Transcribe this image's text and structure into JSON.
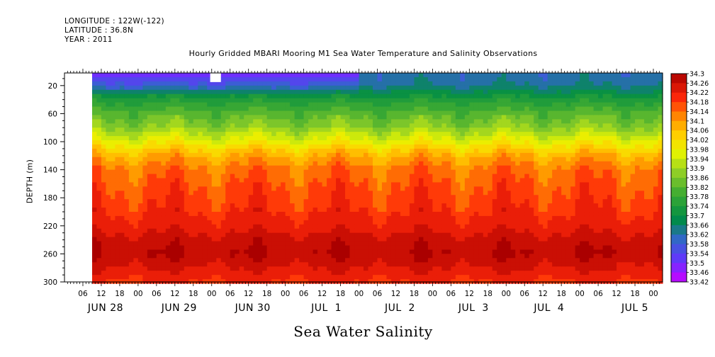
{
  "header": {
    "longitude": "LONGITUDE : 122W(-122)",
    "latitude": "LATITUDE : 36.8N",
    "year": "YEAR : 2011"
  },
  "chart_data": {
    "type": "heatmap",
    "title": "Hourly Gridded MBARI Mooring M1 Sea Water Temperature and Salinity Observations",
    "xlabel": "Sea Water Salinity",
    "ylabel": "DEPTH (m)",
    "x_range_hours": [
      0,
      195
    ],
    "ylim": [
      300,
      2
    ],
    "y_ticks": [
      20,
      60,
      100,
      140,
      180,
      220,
      260,
      300
    ],
    "x_hour_labels": [
      "06",
      "12",
      "18",
      "00",
      "06",
      "12",
      "18",
      "00",
      "06",
      "12",
      "18",
      "00",
      "06",
      "12",
      "18",
      "00",
      "06",
      "12",
      "18",
      "00",
      "06",
      "12",
      "18",
      "00",
      "06",
      "12",
      "18",
      "00",
      "06",
      "12",
      "18",
      "00",
      "06"
    ],
    "x_hour_label_positions": [
      6,
      12,
      18,
      24,
      30,
      36,
      42,
      48,
      54,
      60,
      66,
      72,
      78,
      84,
      90,
      96,
      102,
      108,
      114,
      120,
      126,
      132,
      138,
      144,
      150,
      156,
      162,
      168,
      174,
      180,
      186,
      192,
      198
    ],
    "date_labels": [
      {
        "label": "JUN 28",
        "hour": 6
      },
      {
        "label": "JUN 29",
        "hour": 30
      },
      {
        "label": "JUN 30",
        "hour": 54
      },
      {
        "label": "JUL  1",
        "hour": 78
      },
      {
        "label": "JUL  2",
        "hour": 102
      },
      {
        "label": "JUL  3",
        "hour": 126
      },
      {
        "label": "JUL  4",
        "hour": 150
      },
      {
        "label": "JUL 5",
        "hour": 168
      }
    ],
    "data_start_hour": 9,
    "colorbar_levels": [
      "34.3",
      "34.26",
      "34.22",
      "34.18",
      "34.14",
      "34.1",
      "34.06",
      "34.02",
      "33.98",
      "33.94",
      "33.9",
      "33.86",
      "33.82",
      "33.78",
      "33.74",
      "33.7",
      "33.66",
      "33.62",
      "33.58",
      "33.54",
      "33.5",
      "33.46",
      "33.42"
    ],
    "value_range": [
      33.42,
      34.3
    ],
    "depth_profile": [
      {
        "depth": 2,
        "salinity": 33.62
      },
      {
        "depth": 10,
        "salinity": 33.62
      },
      {
        "depth": 20,
        "salinity": 33.64
      },
      {
        "depth": 40,
        "salinity": 33.74
      },
      {
        "depth": 60,
        "salinity": 33.82
      },
      {
        "depth": 80,
        "salinity": 33.88
      },
      {
        "depth": 100,
        "salinity": 33.98
      },
      {
        "depth": 120,
        "salinity": 34.08
      },
      {
        "depth": 140,
        "salinity": 34.14
      },
      {
        "depth": 160,
        "salinity": 34.16
      },
      {
        "depth": 180,
        "salinity": 34.18
      },
      {
        "depth": 200,
        "salinity": 34.2
      },
      {
        "depth": 220,
        "salinity": 34.22
      },
      {
        "depth": 240,
        "salinity": 34.26
      },
      {
        "depth": 260,
        "salinity": 34.28
      },
      {
        "depth": 280,
        "salinity": 34.24
      },
      {
        "depth": 300,
        "salinity": 34.2
      }
    ],
    "surface_fresh_period_hours": [
      9,
      95
    ],
    "surface_fresh_salinity": 33.5
  }
}
